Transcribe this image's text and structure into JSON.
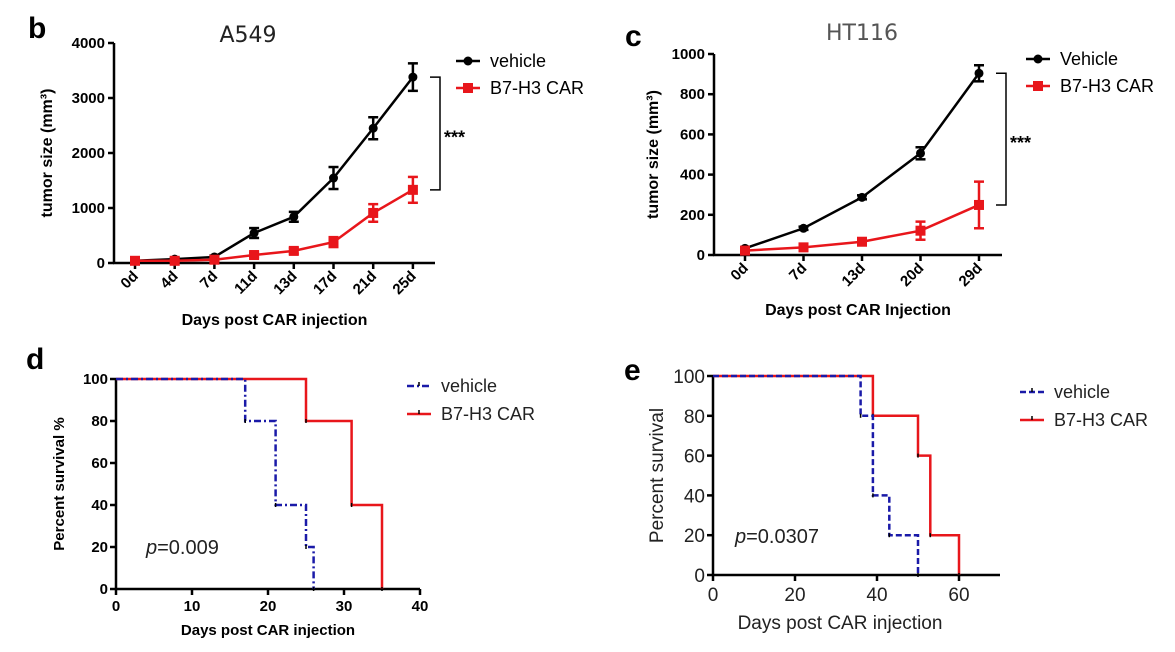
{
  "colors": {
    "vehicle_line": "#000000",
    "car_line": "#e8161b",
    "vehicle_survival": "#1a1aa8",
    "car_survival": "#e8161b",
    "axis": "#000000"
  },
  "chart_data": [
    {
      "panel": "b",
      "type": "line",
      "title": "A549",
      "xlabel": "Days post CAR injection",
      "ylabel": "tumor size (mm³)",
      "categories": [
        "0d",
        "4d",
        "7d",
        "11d",
        "13d",
        "17d",
        "21d",
        "25d"
      ],
      "ylim": [
        0,
        4000
      ],
      "yticks": [
        0,
        1000,
        2000,
        3000,
        4000
      ],
      "grid": false,
      "legend_position": "top-right",
      "series": [
        {
          "name": "vehicle",
          "color": "#000000",
          "marker": "circle",
          "values": [
            40,
            70,
            110,
            545,
            840,
            1545,
            2450,
            3380
          ],
          "errors": [
            15,
            20,
            25,
            90,
            90,
            200,
            200,
            250
          ]
        },
        {
          "name": "B7-H3 CAR",
          "color": "#e8161b",
          "marker": "square",
          "values": [
            40,
            40,
            60,
            145,
            220,
            380,
            910,
            1330
          ],
          "errors": [
            15,
            15,
            20,
            40,
            50,
            90,
            160,
            235
          ]
        }
      ],
      "annotations": [
        {
          "text": "***",
          "between": [
            "vehicle",
            "B7-H3 CAR"
          ],
          "at": "25d"
        }
      ]
    },
    {
      "panel": "c",
      "type": "line",
      "title": "HT116",
      "xlabel": "Days post CAR Injection",
      "ylabel": "tumor size (mm³)",
      "categories": [
        "0d",
        "7d",
        "13d",
        "20d",
        "29d"
      ],
      "ylim": [
        0,
        1000
      ],
      "yticks": [
        0,
        200,
        400,
        600,
        800,
        1000
      ],
      "grid": false,
      "legend_position": "top-right",
      "series": [
        {
          "name": "Vehicle",
          "color": "#000000",
          "marker": "circle",
          "values": [
            33,
            133,
            287,
            506,
            904
          ],
          "errors": [
            5,
            8,
            10,
            30,
            40
          ]
        },
        {
          "name": "B7-H3 CAR",
          "color": "#e8161b",
          "marker": "square",
          "values": [
            22,
            38,
            66,
            121,
            249
          ],
          "errors": [
            4,
            8,
            10,
            45,
            116
          ]
        }
      ],
      "annotations": [
        {
          "text": "***",
          "between": [
            "Vehicle",
            "B7-H3 CAR"
          ],
          "at": "29d"
        }
      ]
    },
    {
      "panel": "d",
      "type": "line",
      "subtype": "kaplan-meier",
      "title": "",
      "xlabel": "Days post CAR injection",
      "ylabel": "Percent survival %",
      "xlim": [
        0,
        40
      ],
      "xticks": [
        0,
        10,
        20,
        30,
        40
      ],
      "ylim": [
        0,
        100
      ],
      "yticks": [
        0,
        20,
        40,
        60,
        80,
        100
      ],
      "grid": false,
      "legend_position": "top-right",
      "series": [
        {
          "name": "vehicle",
          "color": "#1a1aa8",
          "style": "dash-dot",
          "steps": [
            [
              0,
              100
            ],
            [
              17,
              80
            ],
            [
              21,
              40
            ],
            [
              25,
              20
            ],
            [
              26,
              0
            ]
          ]
        },
        {
          "name": "B7-H3 CAR",
          "color": "#e8161b",
          "style": "solid",
          "steps": [
            [
              0,
              100
            ],
            [
              25,
              80
            ],
            [
              31,
              40
            ],
            [
              35,
              0
            ]
          ]
        }
      ],
      "annotations": [
        {
          "text_italic": "p",
          "text": "=0.009"
        }
      ]
    },
    {
      "panel": "e",
      "type": "line",
      "subtype": "kaplan-meier",
      "title": "",
      "xlabel": "Days post CAR injection",
      "ylabel": "Percent survival",
      "xlim": [
        0,
        70
      ],
      "xticks": [
        0,
        20,
        40,
        60
      ],
      "ylim": [
        0,
        100
      ],
      "yticks": [
        0,
        20,
        40,
        60,
        80,
        100
      ],
      "grid": false,
      "legend_position": "top-right",
      "series": [
        {
          "name": "vehicle",
          "color": "#1a1aa8",
          "style": "dashed",
          "steps": [
            [
              0,
              100
            ],
            [
              36,
              80
            ],
            [
              39,
              40
            ],
            [
              43,
              20
            ],
            [
              50,
              0
            ]
          ]
        },
        {
          "name": "B7-H3 CAR",
          "color": "#e8161b",
          "style": "solid",
          "steps": [
            [
              0,
              100
            ],
            [
              39,
              80
            ],
            [
              50,
              60
            ],
            [
              53,
              20
            ],
            [
              60,
              0
            ]
          ]
        }
      ],
      "annotations": [
        {
          "text_italic": "p",
          "text": "=0.0307"
        }
      ]
    }
  ],
  "labels": {
    "panel_b": "b",
    "panel_c": "c",
    "panel_d": "d",
    "panel_e": "e"
  }
}
